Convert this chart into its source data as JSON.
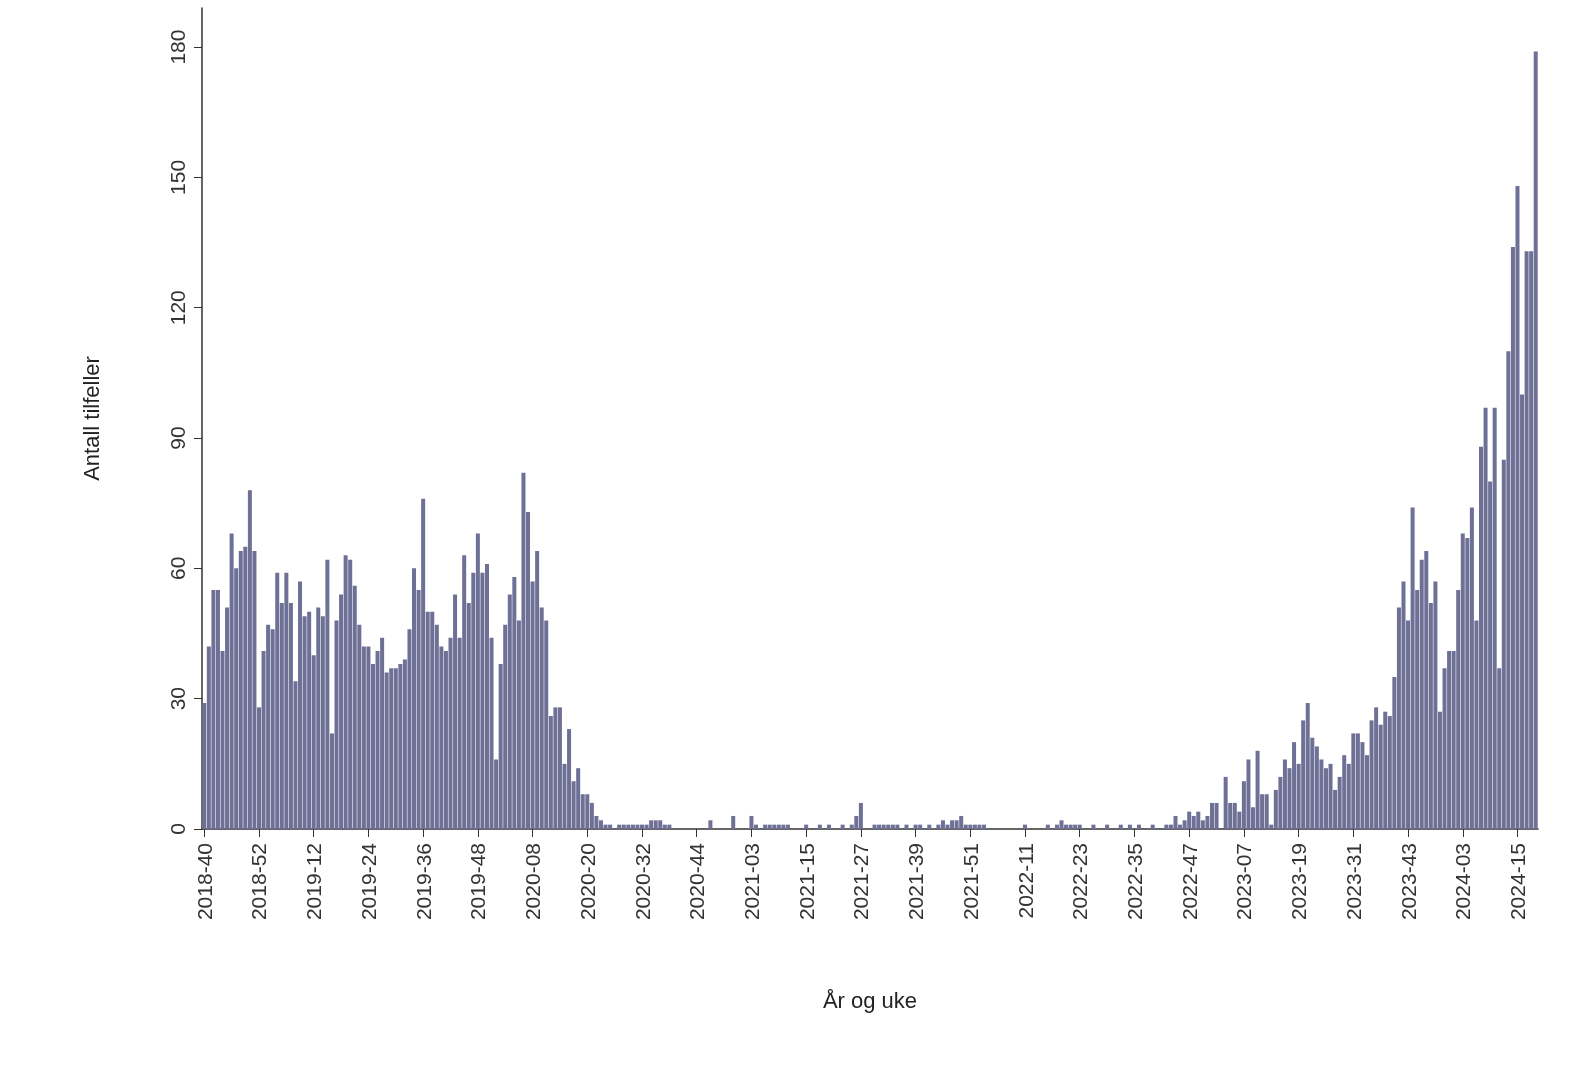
{
  "chart_data": {
    "type": "bar",
    "xlabel": "År og uke",
    "ylabel": "Antall tilfeller",
    "color": "#6e7096",
    "ylim": [
      0,
      189
    ],
    "yticks": [
      0,
      30,
      60,
      90,
      120,
      150,
      180
    ],
    "grid": false,
    "categories": [
      "2018-40",
      null,
      null,
      null,
      null,
      null,
      null,
      null,
      null,
      null,
      null,
      null,
      "2018-52",
      null,
      null,
      null,
      null,
      null,
      null,
      null,
      null,
      null,
      null,
      null,
      "2019-12",
      null,
      null,
      null,
      null,
      null,
      null,
      null,
      null,
      null,
      null,
      null,
      "2019-24",
      null,
      null,
      null,
      null,
      null,
      null,
      null,
      null,
      null,
      null,
      null,
      "2019-36",
      null,
      null,
      null,
      null,
      null,
      null,
      null,
      null,
      null,
      null,
      null,
      "2019-48",
      null,
      null,
      null,
      null,
      null,
      null,
      null,
      null,
      null,
      null,
      null,
      "2020-08",
      null,
      null,
      null,
      null,
      null,
      null,
      null,
      null,
      null,
      null,
      null,
      "2020-20",
      null,
      null,
      null,
      null,
      null,
      null,
      null,
      null,
      null,
      null,
      null,
      "2020-32",
      null,
      null,
      null,
      null,
      null,
      null,
      null,
      null,
      null,
      null,
      null,
      "2020-44",
      null,
      null,
      null,
      null,
      null,
      null,
      null,
      null,
      null,
      null,
      null,
      "2021-03",
      null,
      null,
      null,
      null,
      null,
      null,
      null,
      null,
      null,
      null,
      null,
      "2021-15",
      null,
      null,
      null,
      null,
      null,
      null,
      null,
      null,
      null,
      null,
      null,
      "2021-27",
      null,
      null,
      null,
      null,
      null,
      null,
      null,
      null,
      null,
      null,
      null,
      "2021-39",
      null,
      null,
      null,
      null,
      null,
      null,
      null,
      null,
      null,
      null,
      null,
      "2021-51",
      null,
      null,
      null,
      null,
      null,
      null,
      null,
      null,
      null,
      null,
      null,
      "2022-11",
      null,
      null,
      null,
      null,
      null,
      null,
      null,
      null,
      null,
      null,
      null,
      "2022-23",
      null,
      null,
      null,
      null,
      null,
      null,
      null,
      null,
      null,
      null,
      null,
      "2022-35",
      null,
      null,
      null,
      null,
      null,
      null,
      null,
      null,
      null,
      null,
      null,
      "2022-47",
      null,
      null,
      null,
      null,
      null,
      null,
      null,
      null,
      null,
      null,
      null,
      "2023-07",
      null,
      null,
      null,
      null,
      null,
      null,
      null,
      null,
      null,
      null,
      null,
      "2023-19",
      null,
      null,
      null,
      null,
      null,
      null,
      null,
      null,
      null,
      null,
      null,
      "2023-31",
      null,
      null,
      null,
      null,
      null,
      null,
      null,
      null,
      null,
      null,
      null,
      "2023-43",
      null,
      null,
      null,
      null,
      null,
      null,
      null,
      null,
      null,
      null,
      null,
      "2024-03",
      null,
      null,
      null,
      null,
      null,
      null,
      null,
      null,
      null,
      null,
      null,
      "2024-15",
      null,
      null,
      null,
      null
    ],
    "values": [
      29,
      42,
      55,
      55,
      41,
      51,
      68,
      60,
      64,
      65,
      78,
      64,
      28,
      41,
      47,
      46,
      59,
      52,
      59,
      52,
      34,
      57,
      49,
      50,
      40,
      51,
      49,
      62,
      22,
      48,
      54,
      63,
      62,
      56,
      47,
      42,
      42,
      38,
      41,
      44,
      36,
      37,
      37,
      38,
      39,
      46,
      60,
      55,
      76,
      50,
      50,
      47,
      42,
      41,
      44,
      54,
      44,
      63,
      52,
      59,
      68,
      59,
      61,
      44,
      16,
      38,
      47,
      54,
      58,
      48,
      82,
      73,
      57,
      64,
      51,
      48,
      26,
      28,
      28,
      15,
      23,
      11,
      14,
      8,
      8,
      6,
      3,
      2,
      1,
      1,
      0,
      1,
      1,
      1,
      1,
      1,
      1,
      1,
      2,
      2,
      2,
      1,
      1,
      0,
      0,
      0,
      0,
      0,
      0,
      0,
      0,
      2,
      0,
      0,
      0,
      0,
      3,
      0,
      0,
      0,
      3,
      1,
      0,
      1,
      1,
      1,
      1,
      1,
      1,
      0,
      0,
      0,
      1,
      0,
      0,
      1,
      0,
      1,
      0,
      0,
      1,
      0,
      1,
      3,
      6,
      0,
      0,
      1,
      1,
      1,
      1,
      1,
      1,
      0,
      1,
      0,
      1,
      1,
      0,
      1,
      0,
      1,
      2,
      1,
      2,
      2,
      3,
      1,
      1,
      1,
      1,
      1,
      0,
      0,
      0,
      0,
      0,
      0,
      0,
      0,
      1,
      0,
      0,
      0,
      0,
      1,
      0,
      1,
      2,
      1,
      1,
      1,
      1,
      0,
      0,
      1,
      0,
      0,
      1,
      0,
      0,
      1,
      0,
      1,
      0,
      1,
      0,
      0,
      1,
      0,
      0,
      1,
      1,
      3,
      1,
      2,
      4,
      3,
      4,
      2,
      3,
      6,
      6,
      0,
      12,
      6,
      6,
      4,
      11,
      16,
      5,
      18,
      8,
      8,
      1,
      9,
      12,
      16,
      14,
      20,
      15,
      25,
      29,
      21,
      19,
      16,
      14,
      15,
      9,
      12,
      17,
      15,
      22,
      22,
      20,
      17,
      25,
      28,
      24,
      27,
      26,
      35,
      51,
      57,
      48,
      74,
      55,
      62,
      64,
      52,
      57,
      27,
      37,
      41,
      41,
      55,
      68,
      67,
      74,
      48,
      88,
      97,
      80,
      97,
      37,
      85,
      110,
      134,
      148,
      100,
      133,
      133,
      179
    ]
  }
}
